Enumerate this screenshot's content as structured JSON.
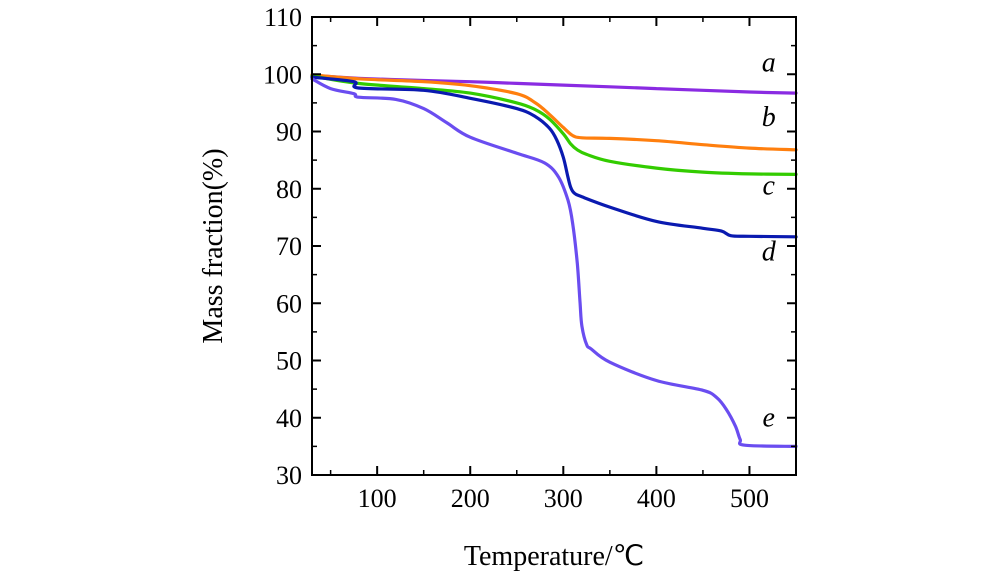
{
  "chart_data": {
    "type": "line",
    "title": "",
    "xlabel": "Temperature/℃",
    "ylabel": "Mass fraction(%)",
    "xlim": [
      30,
      550
    ],
    "ylim": [
      30,
      110
    ],
    "xticks": [
      100,
      200,
      300,
      400,
      500
    ],
    "yticks": [
      30,
      40,
      50,
      60,
      70,
      80,
      90,
      100,
      110
    ],
    "xtick_labels": [
      "100",
      "200",
      "300",
      "400",
      "500"
    ],
    "ytick_labels": [
      "30",
      "40",
      "50",
      "60",
      "70",
      "80",
      "90",
      "100",
      "110"
    ],
    "grid": false,
    "series": [
      {
        "name": "a",
        "color": "#8a2be2",
        "x": [
          30,
          80,
          150,
          200,
          250,
          300,
          350,
          400,
          450,
          500,
          550
        ],
        "y": [
          99.8,
          99.3,
          98.9,
          98.7,
          98.4,
          98.1,
          97.8,
          97.5,
          97.2,
          96.9,
          96.7
        ]
      },
      {
        "name": "b",
        "color": "#ff7f0e",
        "x": [
          30,
          80,
          150,
          200,
          250,
          270,
          285,
          300,
          310,
          320,
          350,
          400,
          450,
          500,
          550
        ],
        "y": [
          99.9,
          99.2,
          98.7,
          98.0,
          96.6,
          95.0,
          93.0,
          90.7,
          89.3,
          88.9,
          88.8,
          88.4,
          87.7,
          87.1,
          86.8
        ]
      },
      {
        "name": "c",
        "color": "#33cc00",
        "x": [
          30,
          80,
          150,
          200,
          250,
          270,
          285,
          300,
          308,
          315,
          325,
          350,
          400,
          450,
          500,
          550
        ],
        "y": [
          99.7,
          98.4,
          97.5,
          96.7,
          95.0,
          93.8,
          92.2,
          89.6,
          87.8,
          86.8,
          86.0,
          84.8,
          83.6,
          82.9,
          82.6,
          82.5
        ]
      },
      {
        "name": "d",
        "color": "#0a1ab0",
        "x": [
          30,
          75,
          80,
          150,
          200,
          250,
          270,
          285,
          293,
          300,
          305,
          308,
          312,
          320,
          350,
          400,
          450,
          470,
          480,
          500,
          550
        ],
        "y": [
          99.5,
          98.7,
          97.6,
          97.2,
          95.8,
          94.0,
          92.6,
          90.6,
          88.5,
          85.5,
          82.0,
          80.2,
          79.2,
          78.6,
          76.8,
          74.3,
          73.1,
          72.6,
          71.8,
          71.7,
          71.6
        ]
      },
      {
        "name": "e",
        "color": "#6a4df0",
        "x": [
          30,
          50,
          75,
          80,
          120,
          150,
          175,
          200,
          250,
          280,
          295,
          305,
          310,
          315,
          318,
          320,
          325,
          330,
          350,
          400,
          450,
          465,
          475,
          485,
          490,
          495,
          550
        ],
        "y": [
          99.2,
          97.5,
          96.6,
          96.0,
          95.6,
          94.0,
          91.5,
          89.0,
          86.2,
          84.5,
          82.0,
          78.0,
          74.0,
          67.0,
          60.0,
          56.0,
          52.8,
          52.0,
          49.7,
          46.5,
          44.8,
          43.5,
          41.5,
          38.5,
          36.2,
          35.2,
          35.0
        ]
      }
    ],
    "series_labels": [
      {
        "text": "a",
        "x": 510,
        "y": 100.5
      },
      {
        "text": "b",
        "x": 510,
        "y": 91.0
      },
      {
        "text": "c",
        "x": 510,
        "y": 79.0
      },
      {
        "text": "d",
        "x": 510,
        "y": 67.5
      },
      {
        "text": "e",
        "x": 510,
        "y": 38.5
      }
    ]
  }
}
